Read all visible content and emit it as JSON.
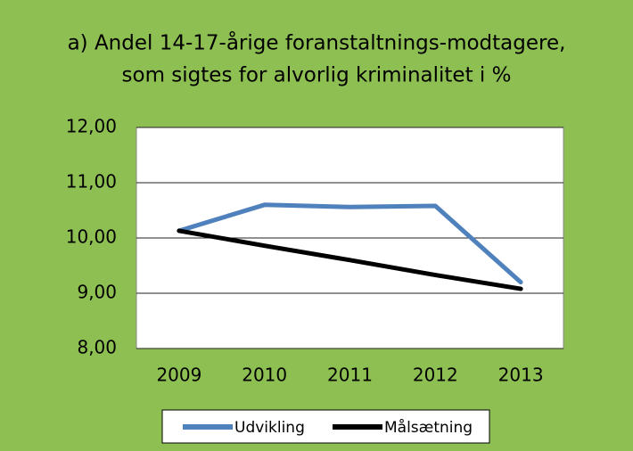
{
  "chart_data": {
    "type": "line",
    "title": [
      "a) Andel 14-17-årige foranstaltnings-modtagere,",
      "som sigtes for alvorlig kriminalitet i %"
    ],
    "categories": [
      "2009",
      "2010",
      "2011",
      "2012",
      "2013"
    ],
    "series": [
      {
        "name": "Udvikling",
        "color": "#4f81bd",
        "values": [
          10.13,
          10.6,
          10.56,
          10.58,
          9.2
        ]
      },
      {
        "name": "Målsætning",
        "color": "#000000",
        "values": [
          10.13,
          9.86,
          9.6,
          9.33,
          9.08
        ]
      }
    ],
    "ylim": [
      8,
      12
    ],
    "yticks": [
      {
        "value": 8,
        "label": "8,00"
      },
      {
        "value": 9,
        "label": "9,00"
      },
      {
        "value": 10,
        "label": "10,00"
      },
      {
        "value": 11,
        "label": "11,00"
      },
      {
        "value": 12,
        "label": "12,00"
      }
    ],
    "grid": true,
    "background": "#8dbf52",
    "legend": "bottom"
  }
}
